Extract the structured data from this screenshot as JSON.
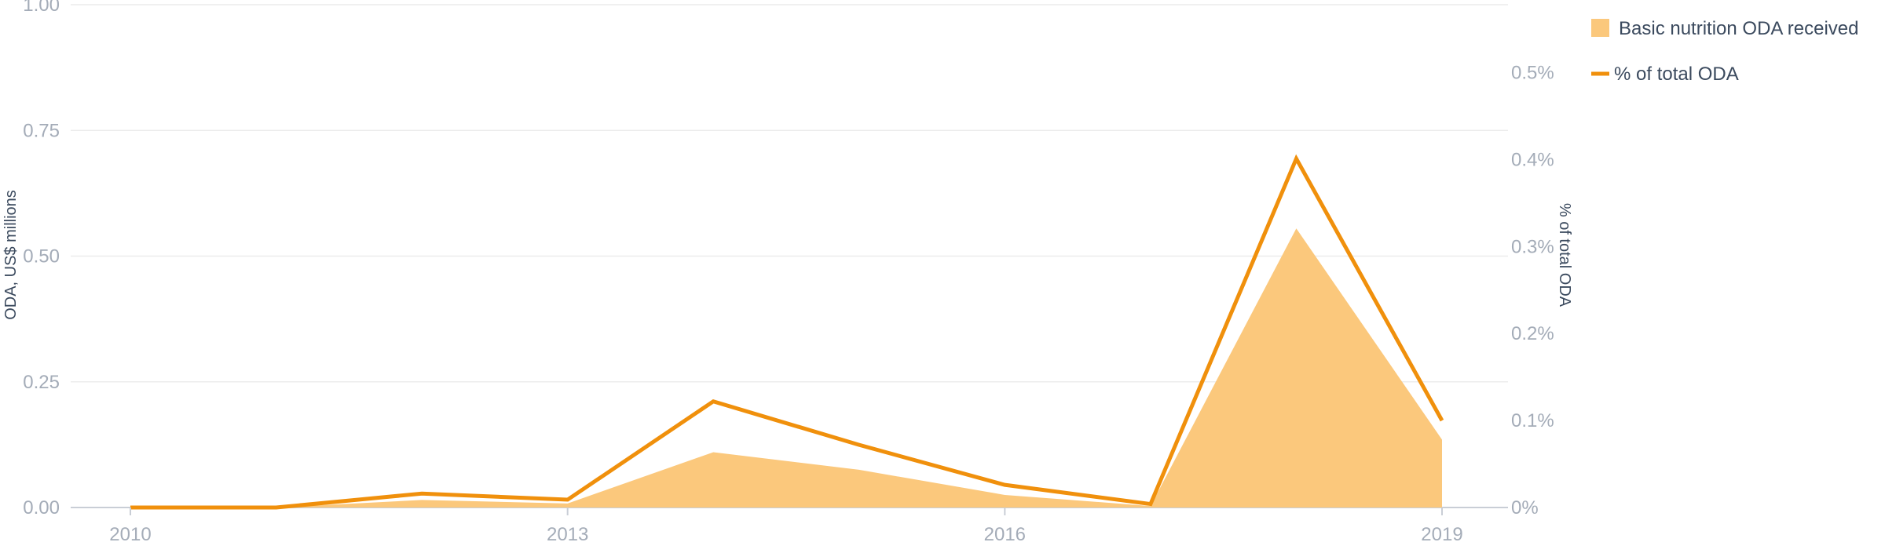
{
  "chart_data": {
    "type": "area",
    "x_ticks": [
      "2010",
      "2013",
      "2016",
      "2019"
    ],
    "y_left": {
      "label": "ODA, US$ millions",
      "ticks": [
        "0.00",
        "0.25",
        "0.50",
        "0.75",
        "1.00"
      ],
      "range": [
        0,
        1
      ]
    },
    "y_right": {
      "label": "% of total ODA",
      "ticks": [
        "0%",
        "0.1%",
        "0.2%",
        "0.3%",
        "0.4%",
        "0.5%"
      ],
      "range": [
        0,
        0.578
      ]
    },
    "x_range": [
      2010,
      2019
    ],
    "grid": true,
    "legend_position": "top-right",
    "series": [
      {
        "name": "Basic nutrition ODA received",
        "kind": "area",
        "axis": "left",
        "color": "#fbc87c",
        "x": [
          2010,
          2011,
          2012,
          2013,
          2014,
          2015,
          2016,
          2017,
          2018,
          2019
        ],
        "y": [
          0.0,
          0.0,
          0.015,
          0.008,
          0.11,
          0.075,
          0.025,
          0.003,
          0.555,
          0.135
        ]
      },
      {
        "name": "% of total ODA",
        "kind": "line",
        "axis": "right",
        "color": "#f0900c",
        "x": [
          2010,
          2011,
          2012,
          2013,
          2014,
          2015,
          2016,
          2017,
          2018,
          2019
        ],
        "y": [
          0.0,
          0.0,
          0.016,
          0.009,
          0.122,
          0.072,
          0.026,
          0.004,
          0.401,
          0.1
        ]
      }
    ]
  }
}
